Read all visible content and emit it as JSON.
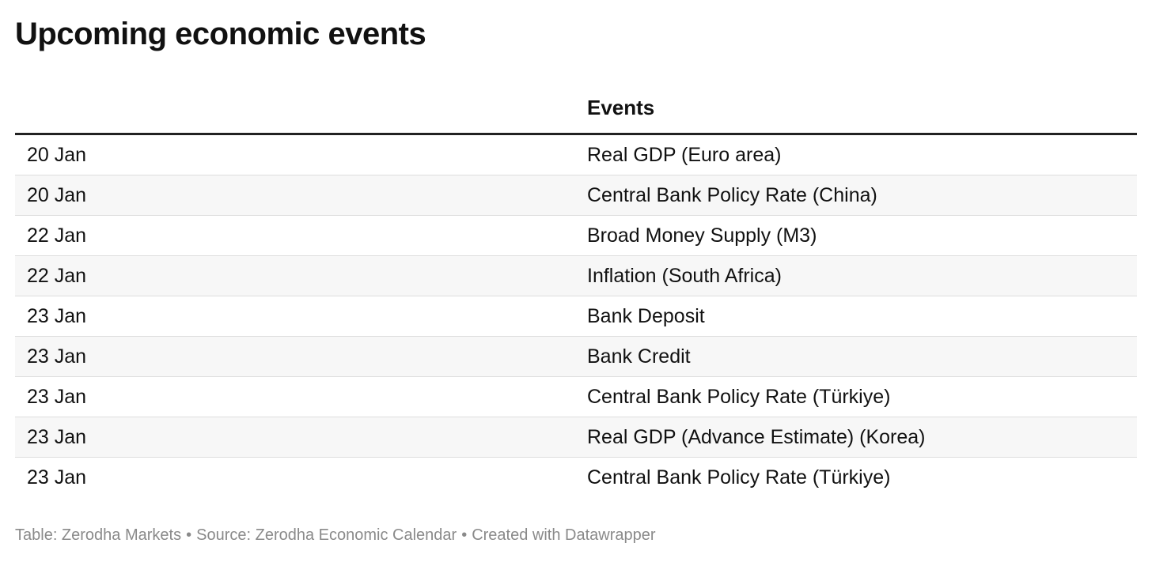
{
  "title": "Upcoming economic events",
  "table": {
    "columns": [
      "",
      "Events"
    ],
    "rows": [
      {
        "date": "20 Jan",
        "event": "Real GDP (Euro area)"
      },
      {
        "date": "20 Jan",
        "event": "Central Bank Policy Rate (China)"
      },
      {
        "date": "22 Jan",
        "event": "Broad Money Supply (M3)"
      },
      {
        "date": "22 Jan",
        "event": "Inflation (South Africa)"
      },
      {
        "date": "23 Jan",
        "event": "Bank Deposit"
      },
      {
        "date": "23 Jan",
        "event": "Bank Credit"
      },
      {
        "date": "23 Jan",
        "event": "Central Bank Policy Rate (Türkiye)"
      },
      {
        "date": "23 Jan",
        "event": "Real GDP (Advance Estimate) (Korea)"
      },
      {
        "date": "23 Jan",
        "event": "Central Bank Policy Rate (Türkiye)"
      }
    ]
  },
  "footer": {
    "table_credit": "Table: Zerodha Markets",
    "separator": "•",
    "source": "Source: Zerodha Economic Calendar",
    "created_with": "Created with Datawrapper"
  },
  "colors": {
    "title": "#111111",
    "header_rule": "#222222",
    "row_alt_background": "#f7f7f7",
    "row_divider": "#dedede",
    "footer_text": "#8a8a8a"
  }
}
